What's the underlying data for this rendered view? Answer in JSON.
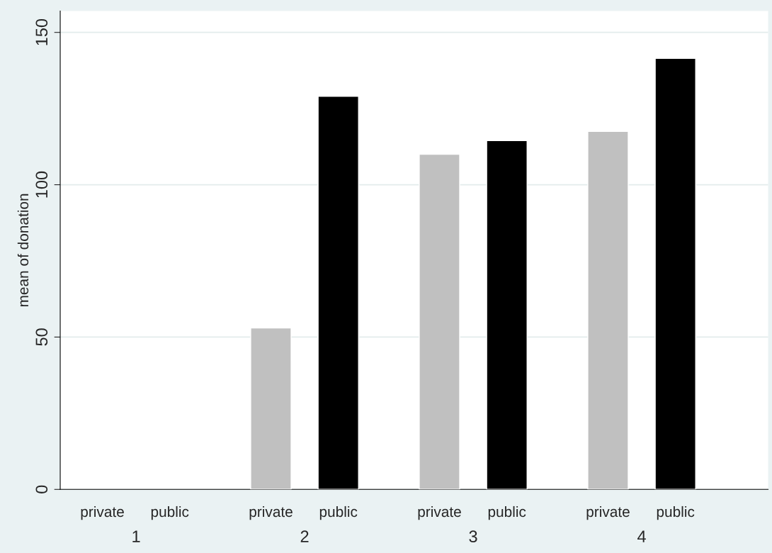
{
  "chart_data": {
    "type": "bar",
    "ylabel": "mean of donation",
    "categories": [
      "1",
      "2",
      "3",
      "4"
    ],
    "series": [
      {
        "name": "private",
        "color": "#c0c0c0",
        "values": [
          null,
          53,
          110,
          117.5
        ]
      },
      {
        "name": "public",
        "color": "#000000",
        "values": [
          null,
          129,
          114.5,
          141.5
        ]
      }
    ],
    "ylim": [
      0,
      157
    ],
    "yticks": [
      0,
      50,
      100,
      150
    ],
    "grid": "y",
    "legend": false
  }
}
